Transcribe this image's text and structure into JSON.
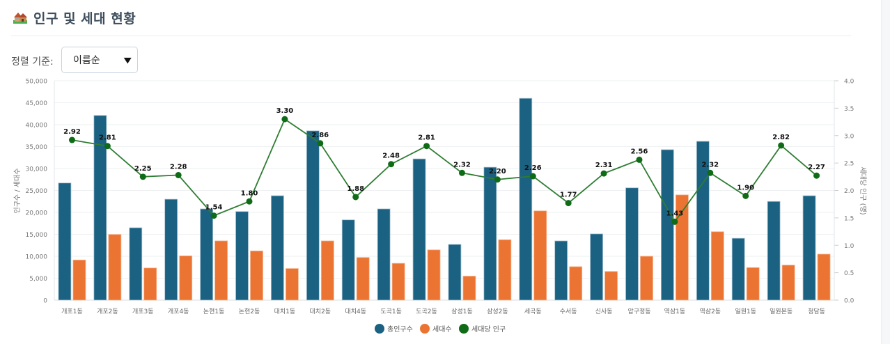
{
  "header": {
    "title": "인구 및 세대 현황",
    "icon": "houses-icon"
  },
  "controls": {
    "sort_label": "정렬 기준:",
    "sort_value": "이름순"
  },
  "colors": {
    "population": "#1a6182",
    "households": "#ec7433",
    "ratio": "#0f6b16",
    "ratio_line": "#2e7d32"
  },
  "chart_data": {
    "type": "bar",
    "title": "",
    "categories": [
      "개포1동",
      "개포2동",
      "개포3동",
      "개포4동",
      "논현1동",
      "논현2동",
      "대치1동",
      "대치2동",
      "대치4동",
      "도곡1동",
      "도곡2동",
      "삼성1동",
      "삼성2동",
      "세곡동",
      "수서동",
      "신사동",
      "압구정동",
      "역삼1동",
      "역삼2동",
      "일원1동",
      "일원본동",
      "청담동"
    ],
    "series": [
      {
        "name": "총인구수",
        "type": "bar",
        "axis": "left",
        "values": [
          26700,
          42100,
          16500,
          23000,
          20800,
          20200,
          23800,
          38600,
          18300,
          20800,
          32200,
          12700,
          30300,
          46000,
          13500,
          15100,
          25600,
          34300,
          36200,
          14100,
          22500,
          23800
        ]
      },
      {
        "name": "세대수",
        "type": "bar",
        "axis": "left",
        "values": [
          9150,
          14980,
          7330,
          10090,
          13510,
          11220,
          7210,
          13500,
          9730,
          8390,
          11460,
          5470,
          13770,
          20350,
          7630,
          6540,
          10000,
          23990,
          15600,
          7420,
          7980,
          10480
        ]
      },
      {
        "name": "세대당 인구",
        "type": "line",
        "axis": "right",
        "values": [
          2.92,
          2.81,
          2.25,
          2.28,
          1.54,
          1.8,
          3.3,
          2.86,
          1.88,
          2.48,
          2.81,
          2.32,
          2.2,
          2.26,
          1.77,
          2.31,
          2.56,
          1.43,
          2.32,
          1.9,
          2.82,
          2.27
        ],
        "labels": [
          "2.92",
          "2.81",
          "2.25",
          "2.28",
          "1.54",
          "1.80",
          "3.30",
          "2.86",
          "1.88",
          "2.48",
          "2.81",
          "2.32",
          "2.20",
          "2.26",
          "1.77",
          "2.31",
          "2.56",
          "1.43",
          "2.32",
          "1.90",
          "2.82",
          "2.27"
        ]
      }
    ],
    "ylabel": "인구수 / 세대수",
    "ylim": [
      0,
      50000
    ],
    "yticks": [
      "0",
      "5,000",
      "10,000",
      "15,000",
      "20,000",
      "25,000",
      "30,000",
      "35,000",
      "40,000",
      "45,000",
      "50,000"
    ],
    "y2label": "세대당 인구 (명)",
    "y2lim": [
      0,
      4.0
    ],
    "y2ticks": [
      "0.0",
      "0.5",
      "1.0",
      "1.5",
      "2.0",
      "2.5",
      "3.0",
      "3.5",
      "4.0"
    ],
    "grid": true,
    "legend": {
      "position": "bottom-center",
      "entries": [
        "총인구수",
        "세대수",
        "세대당 인구"
      ]
    }
  }
}
